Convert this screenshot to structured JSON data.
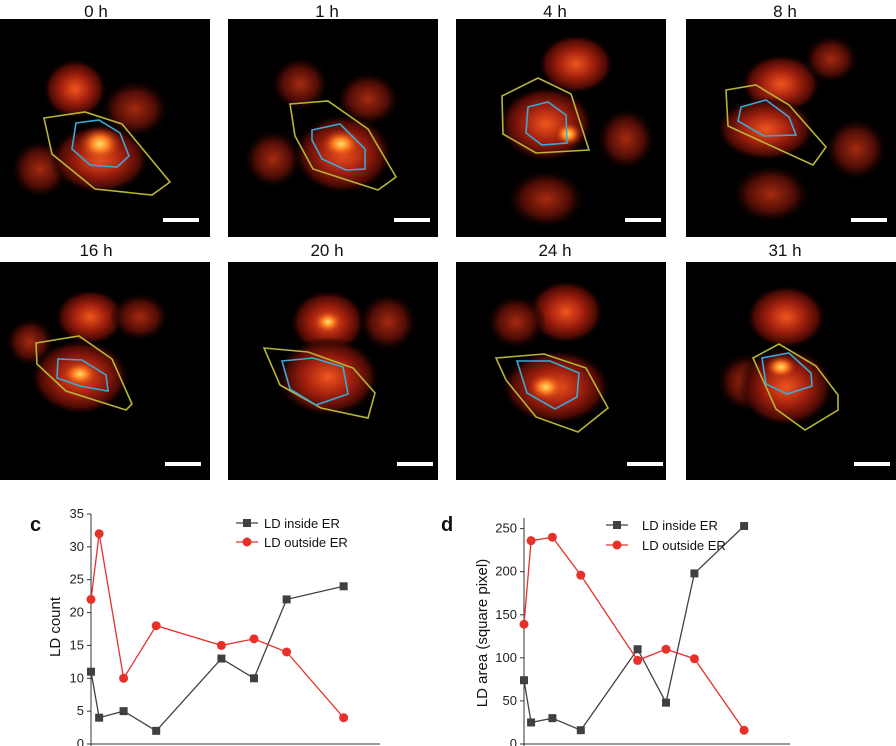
{
  "timepoints": [
    "0 h",
    "1 h",
    "4 h",
    "8 h",
    "16 h",
    "20 h",
    "24 h",
    "31 h"
  ],
  "colors": {
    "cell_outline": "#b7b534",
    "er_outline": "#3aa9d6",
    "inside": "#404040",
    "outside": "#e8302a"
  },
  "chart_data": [
    {
      "type": "line",
      "panel_letter": "c",
      "ylabel": "LD count",
      "ylim": [
        0,
        35
      ],
      "yticks": [
        0,
        5,
        10,
        15,
        20,
        25,
        30,
        35
      ],
      "legend": "top-right",
      "series": [
        {
          "name": "LD inside ER",
          "points": [
            [
              0,
              11
            ],
            [
              1,
              4
            ],
            [
              4,
              5
            ],
            [
              8,
              2
            ],
            [
              16,
              13
            ],
            [
              20,
              10
            ],
            [
              24,
              22
            ],
            [
              31,
              24
            ]
          ]
        },
        {
          "name": "LD outside ER",
          "points": [
            [
              0,
              22
            ],
            [
              1,
              32
            ],
            [
              4,
              10
            ],
            [
              8,
              18
            ],
            [
              16,
              15
            ],
            [
              20,
              16
            ],
            [
              24,
              14
            ],
            [
              31,
              4
            ]
          ]
        }
      ]
    },
    {
      "type": "line",
      "panel_letter": "d",
      "ylabel": "LD area (square pixel)",
      "ylim": [
        0,
        260
      ],
      "yticks": [
        0,
        50,
        100,
        150,
        200,
        250
      ],
      "legend": "top-right",
      "series": [
        {
          "name": "LD inside ER",
          "points": [
            [
              0,
              74
            ],
            [
              1,
              25
            ],
            [
              4,
              30
            ],
            [
              8,
              16
            ],
            [
              16,
              110
            ],
            [
              20,
              48
            ],
            [
              24,
              198
            ],
            [
              31,
              253
            ]
          ]
        },
        {
          "name": "LD outside ER",
          "points": [
            [
              0,
              139
            ],
            [
              1,
              236
            ],
            [
              4,
              240
            ],
            [
              8,
              196
            ],
            [
              16,
              97
            ],
            [
              20,
              110
            ],
            [
              24,
              99
            ],
            [
              31,
              16
            ]
          ]
        }
      ]
    }
  ]
}
